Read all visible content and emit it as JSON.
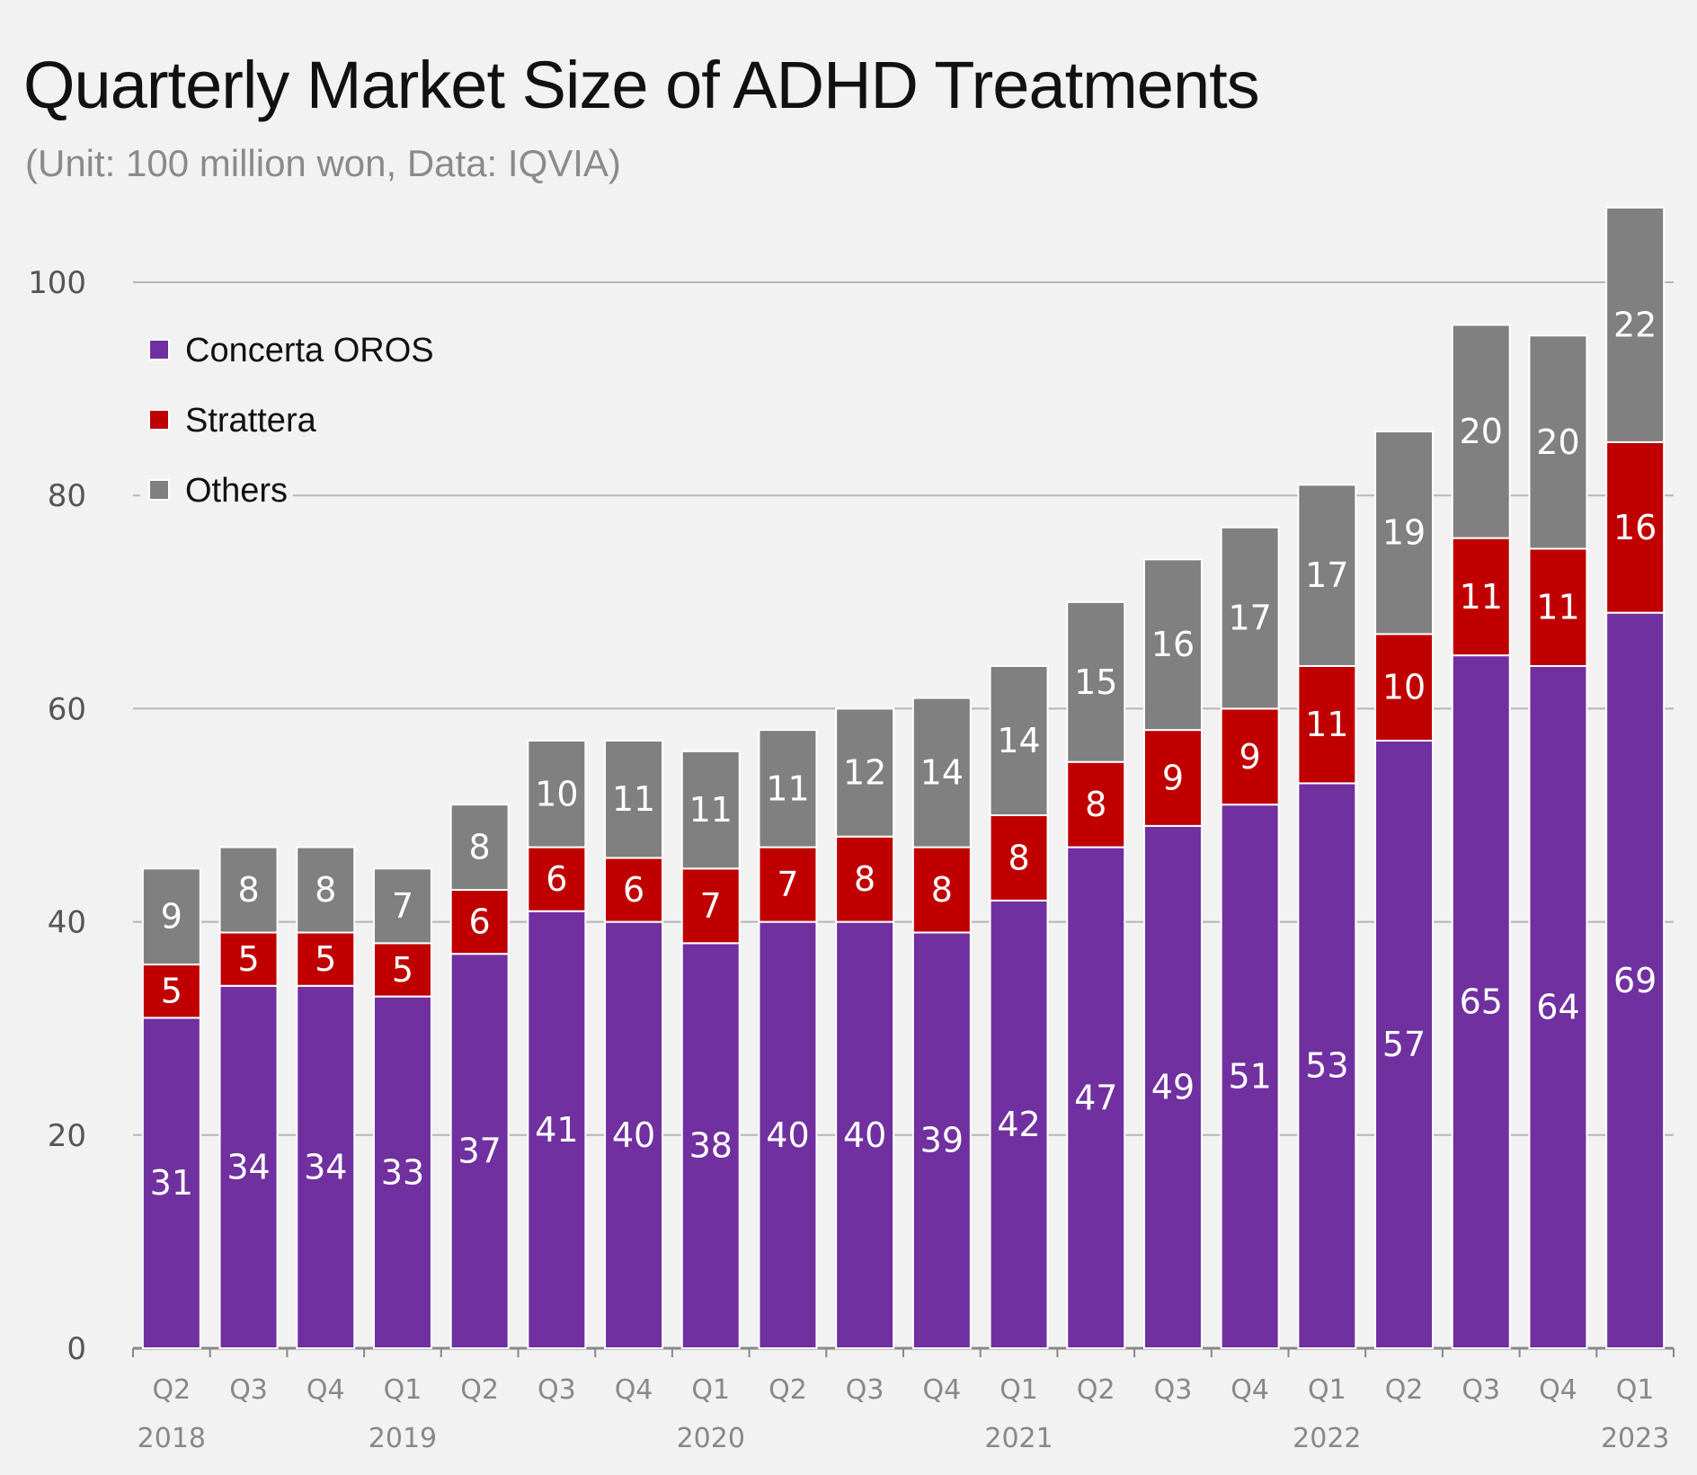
{
  "title": "Quarterly Market Size of ADHD Treatments",
  "subtitle": "(Unit: 100 million won, Data: IQVIA)",
  "chart_data": {
    "type": "bar",
    "stacked": true,
    "title": "Quarterly Market Size of ADHD Treatments",
    "subtitle": "(Unit: 100 million won, Data: IQVIA)",
    "xlabel": "",
    "ylabel": "",
    "ylim": [
      0,
      100
    ],
    "yticks": [
      0,
      20,
      40,
      60,
      80,
      100
    ],
    "grid": true,
    "legend_position": "top-left",
    "categories": [
      "Q2",
      "Q3",
      "Q4",
      "Q1",
      "Q2",
      "Q3",
      "Q4",
      "Q1",
      "Q2",
      "Q3",
      "Q4",
      "Q1",
      "Q2",
      "Q3",
      "Q4",
      "Q1",
      "Q2",
      "Q3",
      "Q4",
      "Q1"
    ],
    "year_labels": [
      {
        "index": 0,
        "label": "2018"
      },
      {
        "index": 3,
        "label": "2019"
      },
      {
        "index": 7,
        "label": "2020"
      },
      {
        "index": 11,
        "label": "2021"
      },
      {
        "index": 15,
        "label": "2022"
      },
      {
        "index": 19,
        "label": "2023"
      }
    ],
    "series": [
      {
        "name": "Concerta OROS",
        "color": "#7030a0",
        "values": [
          31,
          34,
          34,
          33,
          37,
          41,
          40,
          38,
          40,
          40,
          39,
          42,
          47,
          49,
          51,
          53,
          57,
          65,
          64,
          69
        ]
      },
      {
        "name": "Strattera",
        "color": "#c00000",
        "values": [
          5,
          5,
          5,
          5,
          6,
          6,
          6,
          7,
          7,
          8,
          8,
          8,
          8,
          9,
          9,
          11,
          10,
          11,
          11,
          16
        ]
      },
      {
        "name": "Others",
        "color": "#808080",
        "values": [
          9,
          8,
          8,
          7,
          8,
          10,
          11,
          11,
          11,
          12,
          14,
          14,
          15,
          16,
          17,
          17,
          19,
          20,
          20,
          22
        ]
      }
    ]
  }
}
